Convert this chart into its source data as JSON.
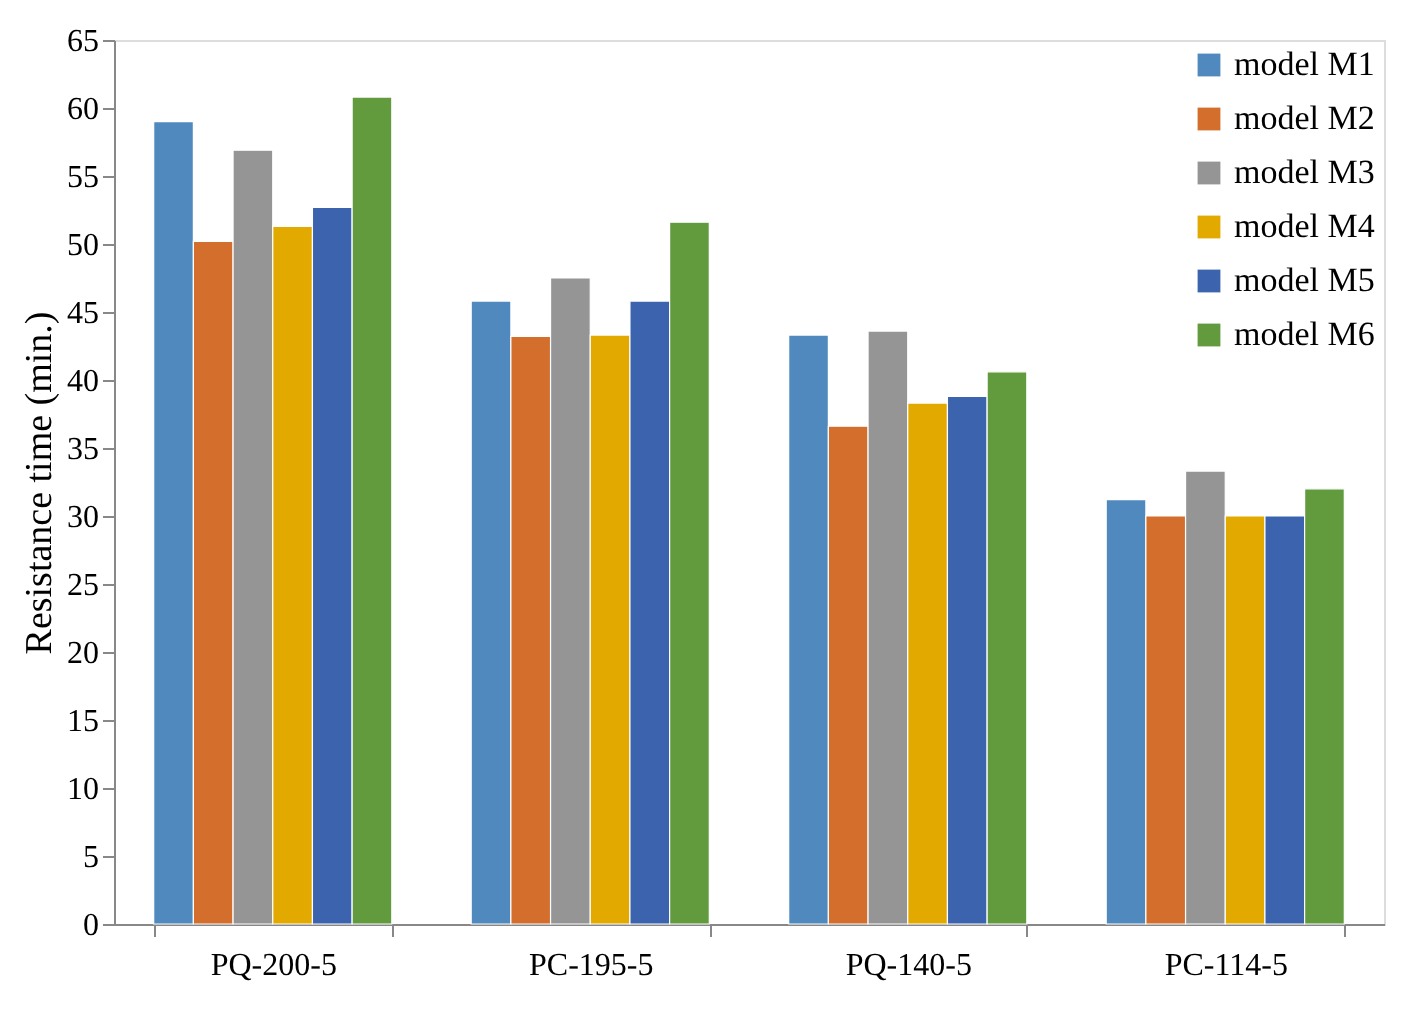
{
  "chart_data": {
    "type": "bar",
    "ylabel": "Resistance time (min.)",
    "categories": [
      "PQ-200-5",
      "PC-195-5",
      "PQ-140-5",
      "PC-114-5"
    ],
    "series": [
      {
        "name": "model M1",
        "color": "#4f89be",
        "values": [
          59.0,
          45.8,
          43.3,
          31.2
        ]
      },
      {
        "name": "model M2",
        "color": "#d46e2c",
        "values": [
          50.2,
          43.2,
          36.6,
          30.0
        ]
      },
      {
        "name": "model M3",
        "color": "#959595",
        "values": [
          56.9,
          47.5,
          43.6,
          33.3
        ]
      },
      {
        "name": "model M4",
        "color": "#e2aa00",
        "values": [
          51.3,
          43.3,
          38.3,
          30.0
        ]
      },
      {
        "name": "model M5",
        "color": "#3c64ae",
        "values": [
          52.7,
          45.8,
          38.8,
          30.0
        ]
      },
      {
        "name": "model M6",
        "color": "#629a3e",
        "values": [
          60.8,
          51.6,
          40.6,
          32.0
        ]
      }
    ],
    "ylim": [
      0,
      65
    ],
    "yticks": [
      0,
      5,
      10,
      15,
      20,
      25,
      30,
      35,
      40,
      45,
      50,
      55,
      60,
      65
    ],
    "grid": false,
    "legend": "top right"
  }
}
